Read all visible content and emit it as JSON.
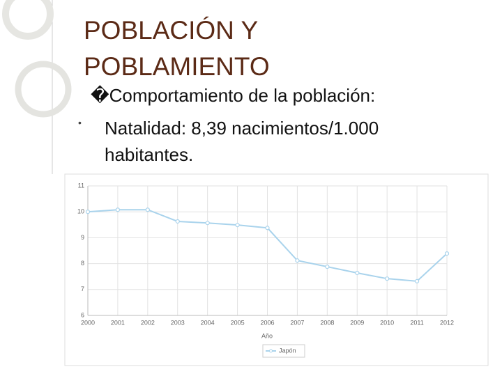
{
  "slide": {
    "title_lines": [
      "POBLACIÓN Y",
      "POBLAMIENTO"
    ],
    "heading": "�Comportamiento de la población:",
    "bullet": "Natalidad: 8,39 nacimientos/1.000 habitantes."
  },
  "chart_data": {
    "type": "line",
    "xlabel": "Año",
    "categories": [
      "2000",
      "2001",
      "2002",
      "2003",
      "2004",
      "2005",
      "2006",
      "2007",
      "2008",
      "2009",
      "2010",
      "2011",
      "2012"
    ],
    "series": [
      {
        "name": "Japón",
        "color": "#a9d3ec",
        "values": [
          10.0,
          10.08,
          10.08,
          9.63,
          9.57,
          9.49,
          9.38,
          8.12,
          7.88,
          7.64,
          7.42,
          7.32,
          8.39
        ]
      }
    ],
    "ylim": [
      6,
      11
    ],
    "yticks": [
      6,
      7,
      8,
      9,
      10,
      11
    ],
    "grid": true
  }
}
